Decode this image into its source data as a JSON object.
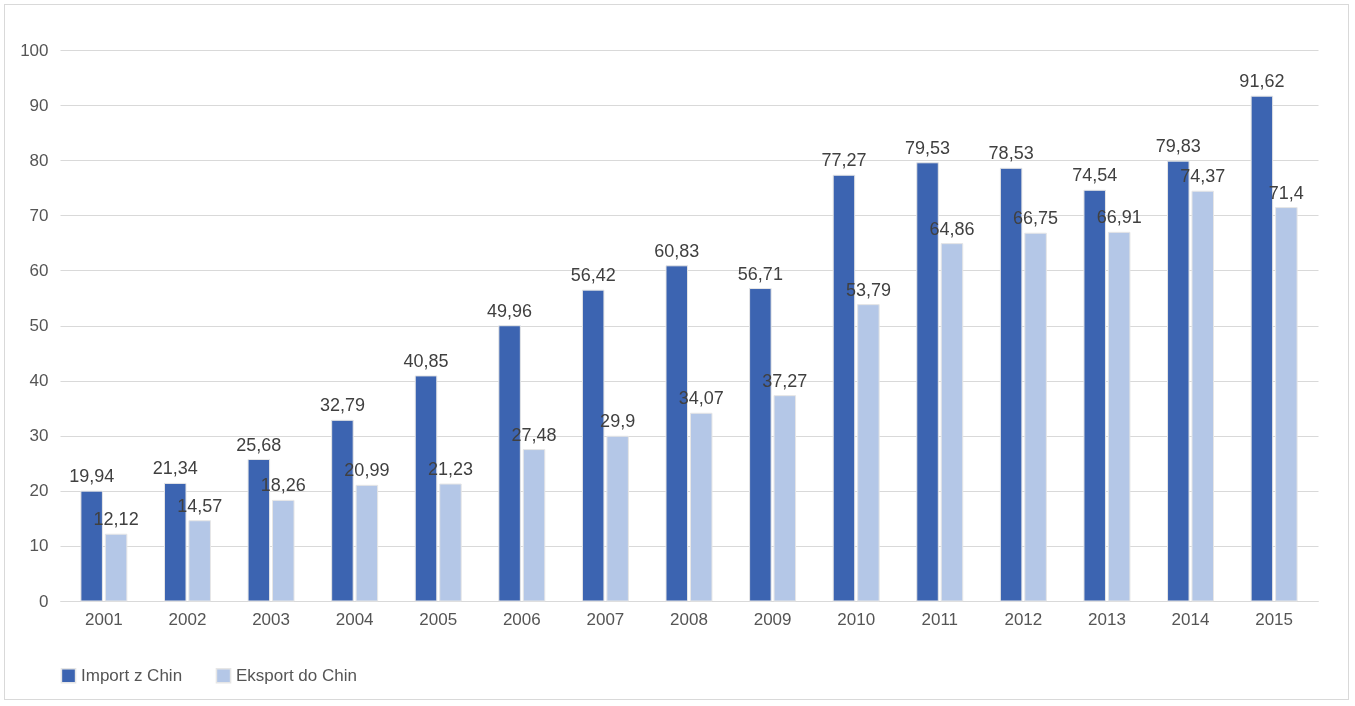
{
  "chart_data": {
    "type": "bar",
    "categories": [
      "2001",
      "2002",
      "2003",
      "2004",
      "2005",
      "2006",
      "2007",
      "2008",
      "2009",
      "2010",
      "2011",
      "2012",
      "2013",
      "2014",
      "2015"
    ],
    "ylim": [
      0,
      100
    ],
    "yticks": [
      0,
      10,
      20,
      30,
      40,
      50,
      60,
      70,
      80,
      90,
      100
    ],
    "grid": "y",
    "legend": "bottom",
    "series": [
      {
        "name": "Import z Chin",
        "color": "#3c64b1",
        "values": [
          19.94,
          21.34,
          25.68,
          32.79,
          40.85,
          49.96,
          56.42,
          60.83,
          56.71,
          77.27,
          79.53,
          78.53,
          74.54,
          79.83,
          91.62
        ],
        "value_labels": [
          "19,94",
          "21,34",
          "25,68",
          "32,79",
          "40,85",
          "49,96",
          "56,42",
          "60,83",
          "56,71",
          "77,27",
          "79,53",
          "78,53",
          "74,54",
          "79,83",
          "91,62"
        ]
      },
      {
        "name": "Eksport do Chin",
        "color": "#b4c7e7",
        "values": [
          12.12,
          14.57,
          18.26,
          20.99,
          21.23,
          27.48,
          29.9,
          34.07,
          37.27,
          53.79,
          64.86,
          66.75,
          66.91,
          74.37,
          71.4
        ],
        "value_labels": [
          "12,12",
          "14,57",
          "18,26",
          "20,99",
          "21,23",
          "27,48",
          "29,9",
          "34,07",
          "37,27",
          "53,79",
          "64,86",
          "66,75",
          "66,91",
          "74,37",
          "71,4"
        ]
      }
    ]
  }
}
